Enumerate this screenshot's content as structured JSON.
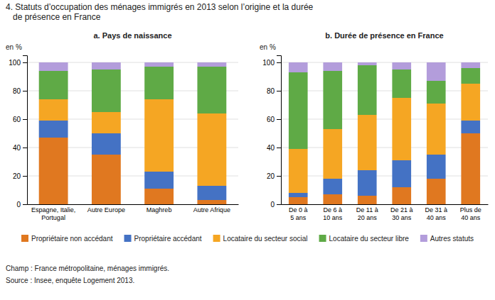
{
  "title": "4. Statuts d’occupation des ménages immigrés en 2013 selon l’origine et la durée\n   de présence en France",
  "annotations": [
    "Champ : France métropolitaine, ménages immigrés.",
    "Source : Insee, enquête Logement 2013."
  ],
  "chart_data": [
    {
      "type": "bar",
      "stacked": true,
      "title": "a. Pays de naissance",
      "y_label": "en %",
      "categories": [
        "Espagne, Italie,\nPortugal",
        "Autre Europe",
        "Maghreb",
        "Autre Afrique"
      ],
      "series": [
        {
          "name": "Propriétaire non accédant",
          "color": "#e07820",
          "values": [
            47,
            35,
            11,
            3
          ]
        },
        {
          "name": "Propriétaire accédant",
          "color": "#4472c4",
          "values": [
            12,
            15,
            12,
            10
          ]
        },
        {
          "name": "Locataire du secteur social",
          "color": "#f5a623",
          "values": [
            15,
            15,
            51,
            51
          ]
        },
        {
          "name": "Locataire du secteur libre",
          "color": "#5faa46",
          "values": [
            20,
            30,
            23,
            33
          ]
        },
        {
          "name": "Autres statuts",
          "color": "#b39ddb",
          "values": [
            6,
            5,
            3,
            3
          ]
        }
      ],
      "ylim": [
        0,
        105
      ],
      "yticks": [
        0,
        20,
        40,
        60,
        80,
        100
      ],
      "grid": true,
      "legend": "bottom"
    },
    {
      "type": "bar",
      "stacked": true,
      "title": "b. Durée de présence en France",
      "y_label": "en %",
      "categories": [
        "De 0 à\n5 ans",
        "De 6 à\n10 ans",
        "De 11 à\n20 ans",
        "De 21 à\n30 ans",
        "De 31 à\n40 ans",
        "Plus de\n40 ans"
      ],
      "series": [
        {
          "name": "Propriétaire non accédant",
          "color": "#e07820",
          "values": [
            5,
            7,
            6,
            12,
            18,
            50
          ]
        },
        {
          "name": "Propriétaire accédant",
          "color": "#4472c4",
          "values": [
            3,
            11,
            18,
            19,
            17,
            9
          ]
        },
        {
          "name": "Locataire du secteur social",
          "color": "#f5a623",
          "values": [
            31,
            35,
            39,
            44,
            36,
            26
          ]
        },
        {
          "name": "Locataire du secteur libre",
          "color": "#5faa46",
          "values": [
            54,
            41,
            35,
            20,
            16,
            11
          ]
        },
        {
          "name": "Autres statuts",
          "color": "#b39ddb",
          "values": [
            7,
            6,
            2,
            5,
            13,
            4
          ]
        }
      ],
      "ylim": [
        0,
        105
      ],
      "yticks": [
        0,
        20,
        40,
        60,
        80,
        100
      ],
      "grid": true
    }
  ]
}
